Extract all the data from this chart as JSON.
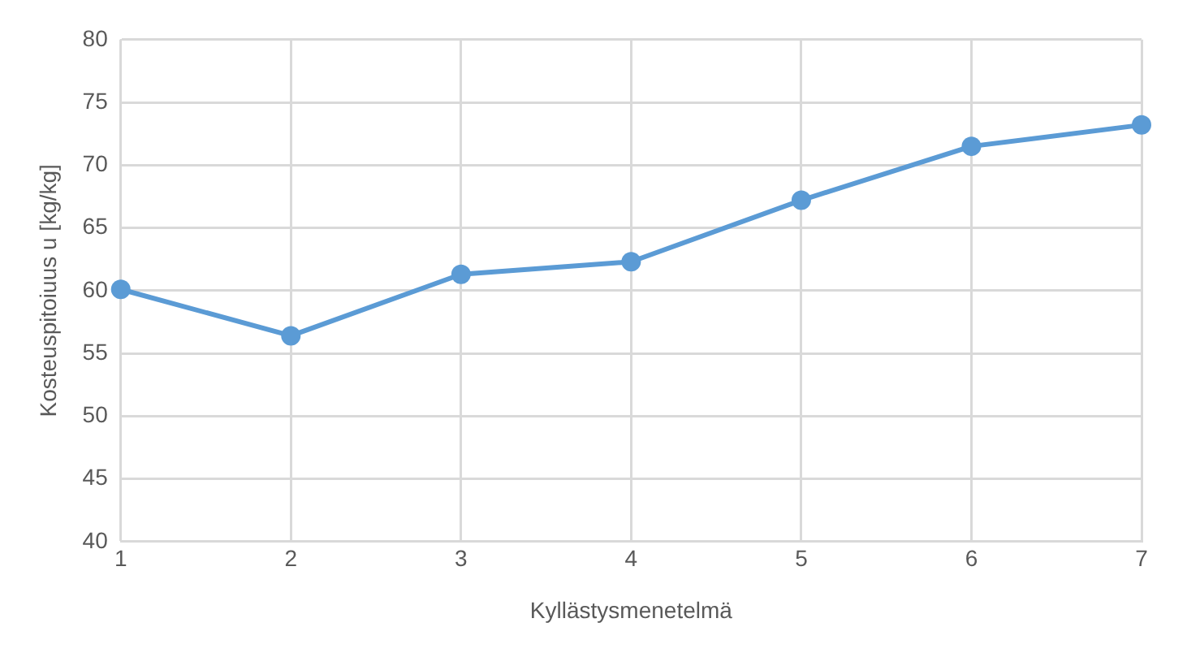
{
  "chart_data": {
    "type": "line",
    "xlabel": "Kyllästysmenetelmä",
    "ylabel": "Kosteuspitoiuus u [kg/kg]",
    "x": [
      1,
      2,
      3,
      4,
      5,
      6,
      7
    ],
    "series": [
      {
        "color": "#5b9bd5",
        "values": [
          60.1,
          56.4,
          61.3,
          62.3,
          67.2,
          71.5,
          73.2
        ]
      }
    ],
    "xlim": [
      1,
      7
    ],
    "xticks": [
      1,
      2,
      3,
      4,
      5,
      6,
      7
    ],
    "ylim": [
      40,
      80
    ],
    "yticks": [
      40,
      45,
      50,
      55,
      60,
      65,
      70,
      75,
      80
    ],
    "grid": true,
    "marker": "circle",
    "line_style": "solid",
    "legend": false
  }
}
